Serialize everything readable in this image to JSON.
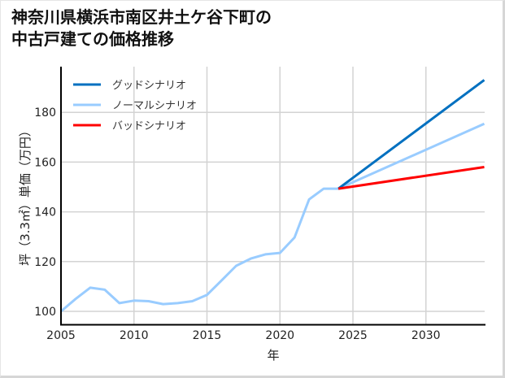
{
  "title": {
    "line1": "神奈川県横浜市南区井土ケ谷下町の",
    "line2": "中古戸建ての価格推移"
  },
  "chart_data": {
    "type": "line",
    "title": "神奈川県横浜市南区井土ケ谷下町の中古戸建ての価格推移",
    "xlabel": "年",
    "ylabel": "坪（3.3㎡）単価（万円）",
    "xlim": [
      2005,
      2034
    ],
    "ylim": [
      95,
      197
    ],
    "xticks": [
      2005,
      2010,
      2015,
      2020,
      2025,
      2030
    ],
    "yticks": [
      100,
      120,
      140,
      160,
      180
    ],
    "grid": true,
    "legend_position": "upper left",
    "series": [
      {
        "name": "グッドシナリオ",
        "color": "#0070C0",
        "x": [
          2024,
          2034
        ],
        "values": [
          149.3,
          193.0
        ]
      },
      {
        "name": "ノーマルシナリオ",
        "color": "#99CCFF",
        "x": [
          2005,
          2006,
          2007,
          2008,
          2009,
          2010,
          2011,
          2012,
          2013,
          2014,
          2015,
          2016,
          2017,
          2018,
          2019,
          2020,
          2021,
          2022,
          2023,
          2024,
          2034
        ],
        "values": [
          100.0,
          105.0,
          109.5,
          108.7,
          103.3,
          104.3,
          104.1,
          102.9,
          103.3,
          104.1,
          106.6,
          112.4,
          118.3,
          121.2,
          122.9,
          123.5,
          129.7,
          145.0,
          149.3,
          149.3,
          175.4
        ]
      },
      {
        "name": "バッドシナリオ",
        "color": "#FF0000",
        "x": [
          2024,
          2034
        ],
        "values": [
          149.3,
          158.0
        ]
      }
    ]
  }
}
